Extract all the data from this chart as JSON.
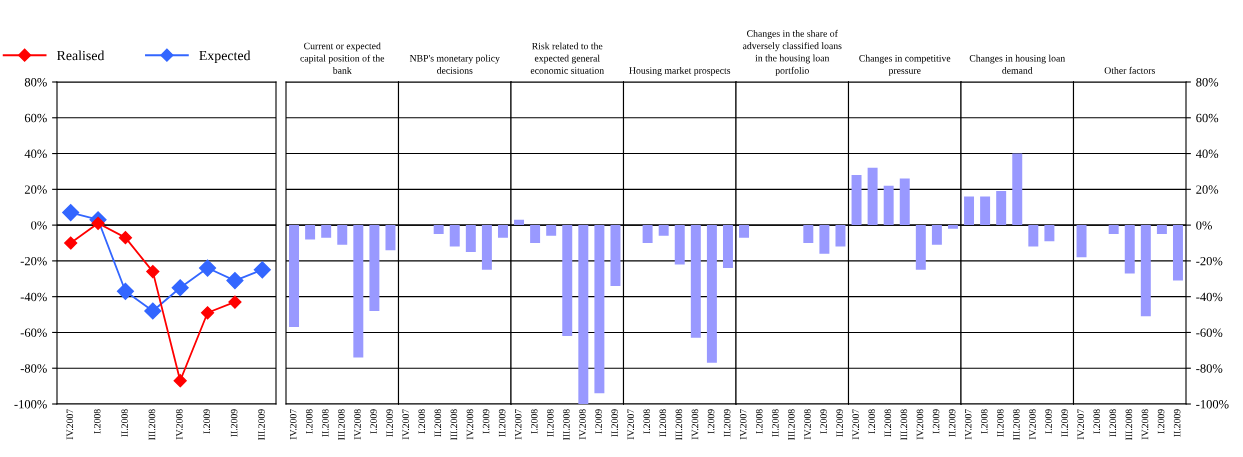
{
  "chart_data": [
    {
      "type": "line",
      "categories": [
        "IV.2007",
        "I.2008",
        "II.2008",
        "III.2008",
        "IV.2008",
        "I.2009",
        "II.2009",
        "III.2009"
      ],
      "series": [
        {
          "name": "Realised",
          "color": "#ff0000",
          "values": [
            -10,
            1,
            -7,
            -26,
            -87,
            -49,
            -43,
            null
          ]
        },
        {
          "name": "Expected",
          "color": "#3366ff",
          "values": [
            7,
            3,
            -37,
            -48,
            -35,
            -24,
            -31,
            -25
          ]
        }
      ],
      "ylim": [
        -100,
        80
      ],
      "yticks": [
        {
          "value": -100,
          "label": "-100%"
        },
        {
          "value": -80,
          "label": "-80%"
        },
        {
          "value": -60,
          "label": "-60%"
        },
        {
          "value": -40,
          "label": "-40%"
        },
        {
          "value": -20,
          "label": "-20%"
        },
        {
          "value": 0,
          "label": "0%"
        },
        {
          "value": 20,
          "label": "20%"
        },
        {
          "value": 40,
          "label": "40%"
        },
        {
          "value": 60,
          "label": "60%"
        },
        {
          "value": 80,
          "label": "80%"
        }
      ],
      "grid": "y",
      "legend": "top left",
      "marker": "diamond",
      "line_style": "solid"
    },
    {
      "type": "bar",
      "title": "Current or expected capital position of the bank",
      "categories": [
        "IV.2007",
        "I.2008",
        "II.2008",
        "III.2008",
        "IV.2008",
        "I.2009",
        "II.2009"
      ],
      "values": [
        -57,
        -8,
        -7,
        -11,
        -74,
        -48,
        -14
      ],
      "color": "#9999ff",
      "ylim": [
        -100,
        80
      ],
      "grid": "y",
      "tick_labels": "x"
    },
    {
      "type": "bar",
      "title": "NBP's monetary policy decisions",
      "categories": [
        "IV.2007",
        "I.2008",
        "II.2008",
        "III.2008",
        "IV.2008",
        "I.2009",
        "II.2009"
      ],
      "values": [
        0,
        0,
        -5,
        -12,
        -15,
        -25,
        -7
      ],
      "color": "#9999ff",
      "ylim": [
        -100,
        80
      ],
      "grid": "y",
      "tick_labels": "x"
    },
    {
      "type": "bar",
      "title": "Risk related to the expected general economic situation",
      "categories": [
        "IV.2007",
        "I.2008",
        "II.2008",
        "III.2008",
        "IV.2008",
        "I.2009",
        "II.2009"
      ],
      "values": [
        3,
        -10,
        -6,
        -62,
        -100,
        -94,
        -34
      ],
      "color": "#9999ff",
      "ylim": [
        -100,
        80
      ],
      "grid": "y",
      "tick_labels": "x"
    },
    {
      "type": "bar",
      "title": "Housing market prospects",
      "categories": [
        "IV.2007",
        "I.2008",
        "II.2008",
        "III.2008",
        "IV.2008",
        "I.2009",
        "II.2009"
      ],
      "values": [
        0,
        -10,
        -6,
        -22,
        -63,
        -77,
        -24
      ],
      "color": "#9999ff",
      "ylim": [
        -100,
        80
      ],
      "grid": "y",
      "tick_labels": "x"
    },
    {
      "type": "bar",
      "title": "Changes in the share of adversely classified loans in the housing loan portfolio",
      "categories": [
        "IV.2007",
        "I.2008",
        "II.2008",
        "III.2008",
        "IV.2008",
        "I.2009",
        "II.2009"
      ],
      "values": [
        -7,
        0,
        0,
        0,
        -10,
        -16,
        -12
      ],
      "color": "#9999ff",
      "ylim": [
        -100,
        80
      ],
      "grid": "y",
      "tick_labels": "x"
    },
    {
      "type": "bar",
      "title": "Changes in competitive pressure",
      "categories": [
        "IV.2007",
        "I.2008",
        "II.2008",
        "III.2008",
        "IV.2008",
        "I.2009",
        "II.2009"
      ],
      "values": [
        28,
        32,
        22,
        26,
        -25,
        -11,
        -2
      ],
      "color": "#9999ff",
      "ylim": [
        -100,
        80
      ],
      "grid": "y",
      "tick_labels": "x"
    },
    {
      "type": "bar",
      "title": "Changes in housing loan demand",
      "categories": [
        "IV.2007",
        "I.2008",
        "II.2008",
        "III.2008",
        "IV.2008",
        "I.2009",
        "II.2009"
      ],
      "values": [
        16,
        16,
        19,
        40,
        -12,
        -9,
        0
      ],
      "color": "#9999ff",
      "ylim": [
        -100,
        80
      ],
      "grid": "y",
      "tick_labels": "x"
    },
    {
      "type": "bar",
      "title": "Other factors",
      "categories": [
        "IV.2007",
        "I.2008",
        "II.2008",
        "III.2008",
        "IV.2008",
        "I.2009",
        "II.2009"
      ],
      "values": [
        -18,
        0,
        -5,
        -27,
        -51,
        -5,
        -31
      ],
      "color": "#9999ff",
      "ylim": [
        -100,
        80
      ],
      "yticks": [
        {
          "value": -100,
          "label": "-100%"
        },
        {
          "value": -80,
          "label": "-80%"
        },
        {
          "value": -60,
          "label": "-60%"
        },
        {
          "value": -40,
          "label": "-40%"
        },
        {
          "value": -20,
          "label": "-20%"
        },
        {
          "value": 0,
          "label": "0%"
        },
        {
          "value": 20,
          "label": "20%"
        },
        {
          "value": 40,
          "label": "40%"
        },
        {
          "value": 60,
          "label": "60%"
        },
        {
          "value": 80,
          "label": "80%"
        }
      ],
      "grid": "y"
    }
  ]
}
